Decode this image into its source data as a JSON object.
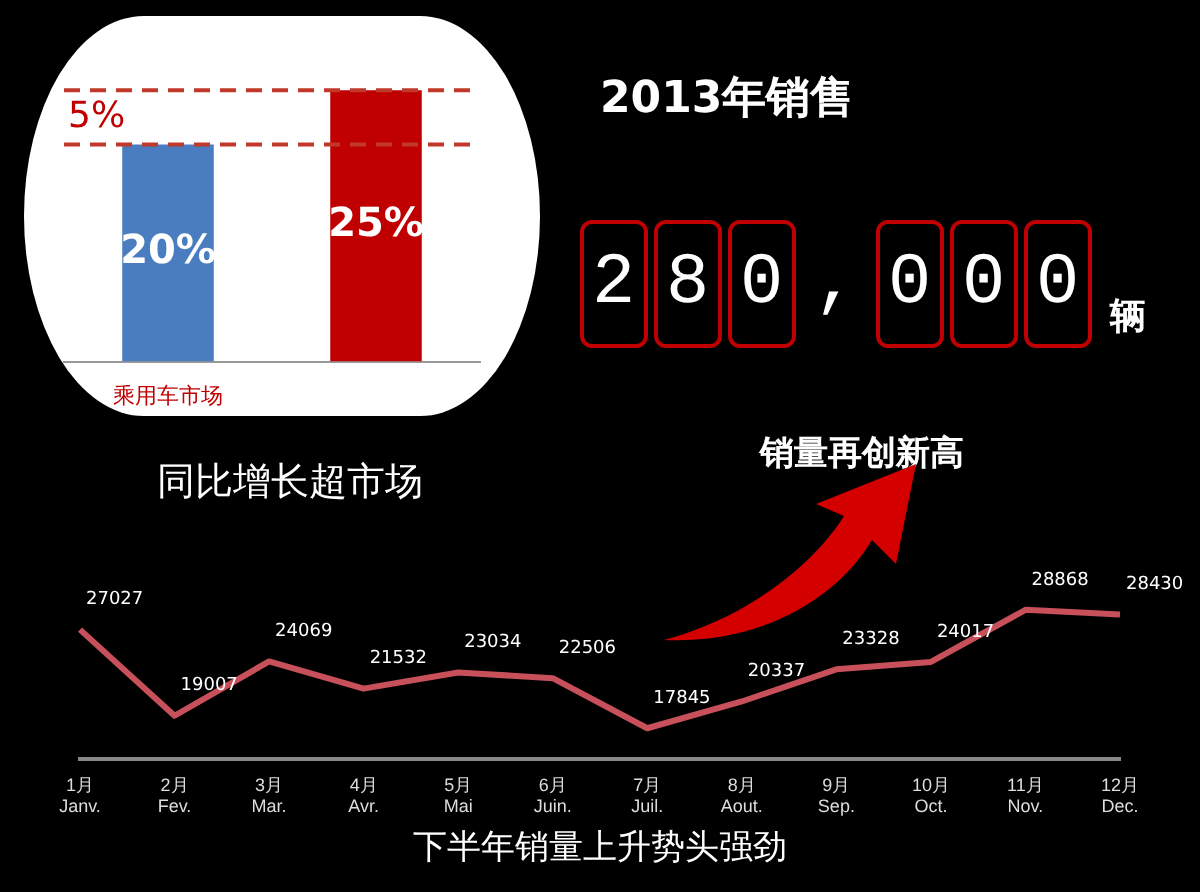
{
  "chart_data": [
    {
      "type": "bar",
      "title": "同比增长超市场",
      "categories": [
        "乘用车市场",
        null
      ],
      "values": [
        20,
        25
      ],
      "colors": [
        "#4a7cc0",
        "#c00000"
      ],
      "value_labels": [
        "20%",
        "25%"
      ],
      "tick_labels": "x",
      "ref_lines": [
        {
          "axis": "y",
          "value": 25,
          "color": "#c0392b",
          "line_style": "dashed"
        },
        {
          "axis": "y",
          "value": 20,
          "color": "#c0392b",
          "line_style": "dashed"
        }
      ],
      "annotations": [
        "5%"
      ],
      "legend": false
    },
    {
      "type": "other",
      "title": "2013年销售",
      "annotations": [
        "280,000",
        "辆",
        "销量再创新高"
      ]
    },
    {
      "type": "line",
      "title": "下半年销量上升势头强劲",
      "categories": [
        "1月\nJanv.",
        "2月\nFev.",
        "3月\nMar.",
        "4月\nAvr.",
        "5月\nMai",
        "6月\nJuin.",
        "7月\nJuil.",
        "8月\nAout.",
        "9月\nSep.",
        "10月\nOct.",
        "11月\nNov.",
        "12月\nDec."
      ],
      "series": [
        {
          "color": "#c8505a",
          "values": [
            27027,
            19007,
            24069,
            21532,
            23034,
            22506,
            17845,
            20337,
            23328,
            24017,
            28868,
            28430
          ]
        }
      ],
      "tick_labels": "x",
      "data_labels": true,
      "grid": false,
      "legend": false,
      "marker": "none",
      "line_style": "solid"
    }
  ]
}
